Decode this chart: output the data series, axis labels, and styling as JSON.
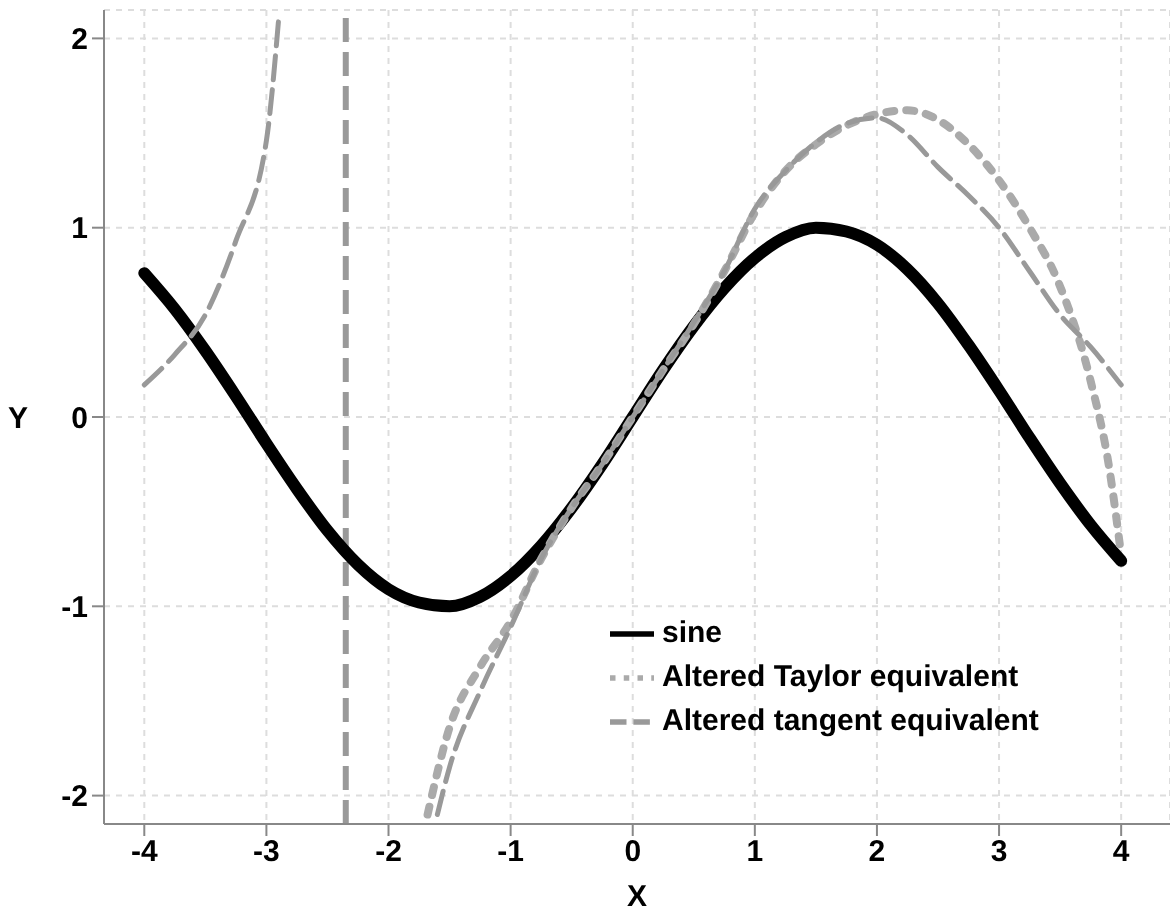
{
  "chart_data": {
    "type": "line",
    "xlabel": "X",
    "ylabel": "Y",
    "xlim": [
      -4.33,
      4.4
    ],
    "ylim": [
      -2.15,
      2.15
    ],
    "xticks": [
      -4,
      -3,
      -2,
      -1,
      0,
      1,
      2,
      3,
      4
    ],
    "yticks": [
      -2,
      -1,
      0,
      1,
      2
    ],
    "grid": true,
    "legend": "bottom right",
    "marker": "none",
    "series": [
      {
        "name": "sine",
        "color": "#000000",
        "line_style": "solid",
        "x": [
          -4,
          -3.75,
          -3.5,
          -3.25,
          -3,
          -2.75,
          -2.5,
          -2.25,
          -2,
          -1.75,
          -1.5,
          -1.25,
          -1,
          -0.75,
          -0.5,
          -0.25,
          0,
          0.25,
          0.5,
          0.75,
          1,
          1.25,
          1.5,
          1.75,
          2,
          2.25,
          2.5,
          2.75,
          3,
          3.25,
          3.5,
          3.75,
          4
        ],
        "values": [
          0.76,
          0.57,
          0.35,
          0.11,
          -0.14,
          -0.38,
          -0.6,
          -0.78,
          -0.91,
          -0.98,
          -1,
          -0.95,
          -0.84,
          -0.68,
          -0.48,
          -0.25,
          0,
          0.25,
          0.48,
          0.68,
          0.84,
          0.95,
          1,
          0.98,
          0.91,
          0.78,
          0.6,
          0.38,
          0.14,
          -0.11,
          -0.35,
          -0.57,
          -0.76
        ]
      },
      {
        "name": "Altered Taylor equivalent",
        "color": "#aaaaaa",
        "line_style": "dotted",
        "x": [
          -1.68,
          -1.5,
          -1.25,
          -1,
          -0.75,
          -0.5,
          -0.25,
          0,
          0.25,
          0.5,
          0.75,
          1,
          1.25,
          1.5,
          1.75,
          2,
          2.25,
          2.5,
          2.75,
          3,
          3.25,
          3.5,
          3.75,
          3.9,
          4
        ],
        "values": [
          -2.1,
          -1.64,
          -1.32,
          -1.08,
          -0.75,
          -0.48,
          -0.25,
          0,
          0.25,
          0.49,
          0.77,
          1.08,
          1.3,
          1.44,
          1.54,
          1.6,
          1.62,
          1.57,
          1.44,
          1.25,
          1,
          0.69,
          0.19,
          -0.26,
          -0.73
        ]
      },
      {
        "name": "Altered tangent equivalent",
        "color": "#999999",
        "line_style": "dashed",
        "x": [
          -4,
          -3.75,
          -3.5,
          -3.25,
          -3,
          -2.9,
          -2.35,
          -1.6,
          -1.5,
          -1.25,
          -1,
          -0.75,
          -0.5,
          -0.25,
          0,
          0.25,
          0.5,
          0.75,
          1,
          1.25,
          1.5,
          1.75,
          2,
          2.25,
          2.5,
          2.75,
          3,
          3.25,
          3.5,
          3.75,
          4
        ],
        "values": [
          0.17,
          0.33,
          0.54,
          0.93,
          1.46,
          2.1,
          null,
          -2.1,
          -1.85,
          -1.45,
          -1.11,
          -0.75,
          -0.48,
          -0.25,
          0,
          0.25,
          0.5,
          0.77,
          1.1,
          1.3,
          1.45,
          1.55,
          1.58,
          1.49,
          1.32,
          1.17,
          1,
          0.77,
          0.54,
          0.37,
          0.17
        ]
      }
    ],
    "ref_lines": [
      {
        "axis": "x",
        "value": -2.35,
        "color": "#999999",
        "line_style": "dashed"
      }
    ]
  }
}
